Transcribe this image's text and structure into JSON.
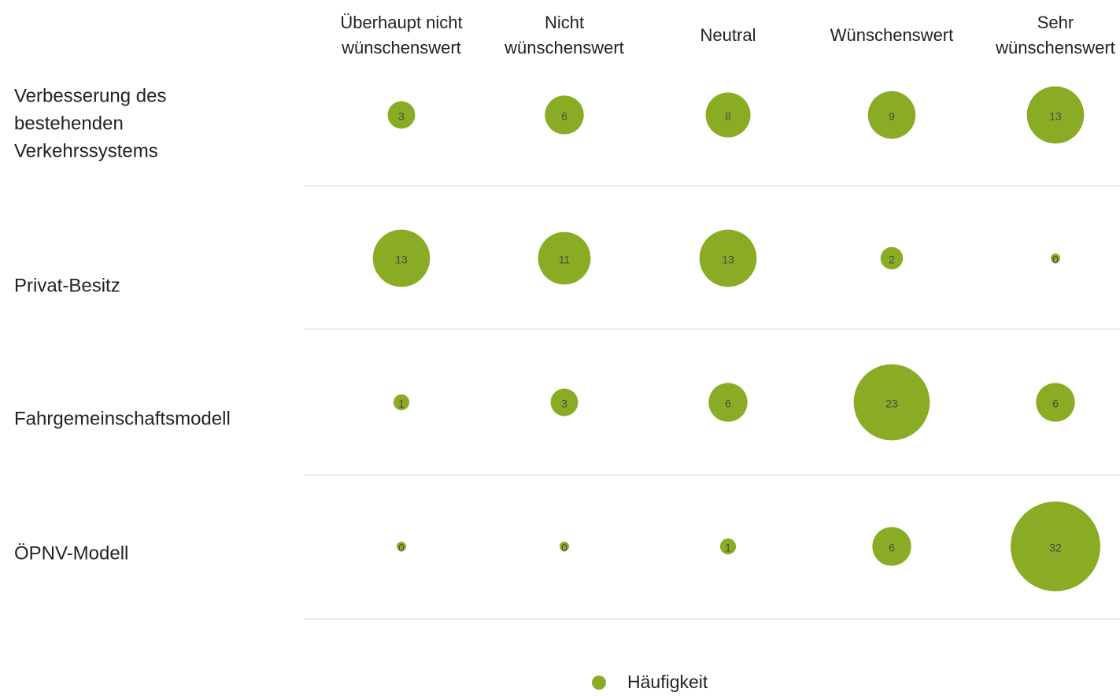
{
  "chart_data": {
    "type": "bubble",
    "columns": [
      "Überhaupt nicht wünschenswert",
      "Nicht wünschenswert",
      "Neutral",
      "Wünschenswert",
      "Sehr wünschenswert"
    ],
    "column_label_lines": [
      [
        "Überhaupt nicht",
        "wünschenswert"
      ],
      [
        "Nicht",
        "wünschenswert"
      ],
      [
        "Neutral"
      ],
      [
        "Wünschenswert"
      ],
      [
        "Sehr",
        "wünschenswert"
      ]
    ],
    "rows": [
      "Verbesserung des bestehenden Verkehrssystems",
      "Privat-Besitz",
      "Fahrgemeinschaftsmodell",
      "ÖPNV-Modell"
    ],
    "row_label_lines": [
      [
        "Verbesserung des",
        "bestehenden",
        "Verkehrssystems"
      ],
      [
        "Privat-Besitz"
      ],
      [
        "Fahrgemeinschaftsmodell"
      ],
      [
        "ÖPNV-Modell"
      ]
    ],
    "series": [
      {
        "name": "Häufigkeit",
        "values": [
          [
            3,
            6,
            8,
            9,
            13
          ],
          [
            13,
            11,
            13,
            2,
            0
          ],
          [
            1,
            3,
            6,
            23,
            6
          ],
          [
            0,
            0,
            1,
            6,
            32
          ]
        ]
      }
    ],
    "legend_position": "bottom",
    "bubble_color": "#8aac24",
    "bubble_label_color": "#4a4a4a",
    "grid": false
  }
}
